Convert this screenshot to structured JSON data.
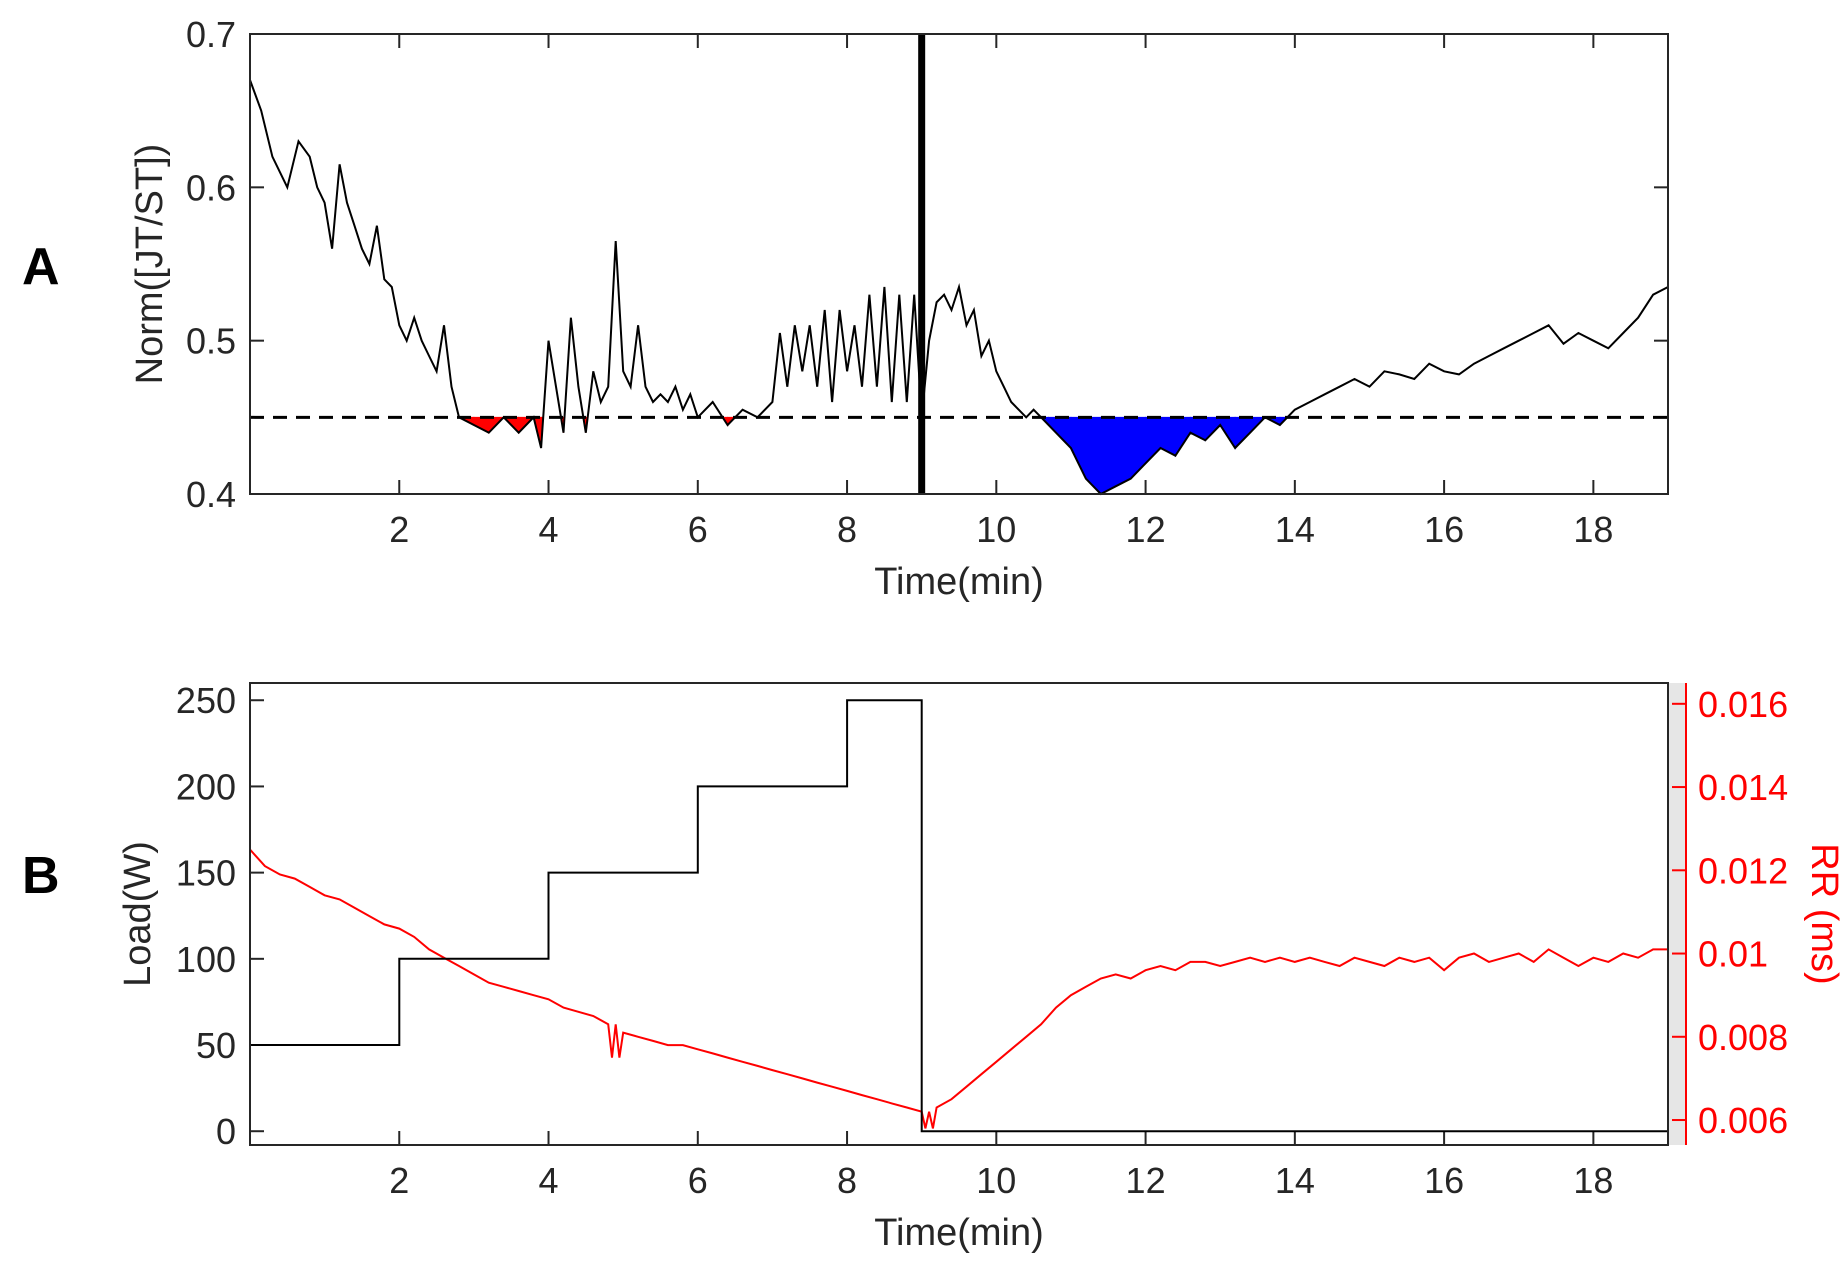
{
  "chart_data": [
    {
      "panel": "A",
      "type": "line",
      "xlabel": "Time(min)",
      "ylabel": "Norm([JT/ST])",
      "xlim": [
        0,
        19
      ],
      "ylim": [
        0.4,
        0.7
      ],
      "xticks": [
        "2",
        "4",
        "6",
        "8",
        "10",
        "12",
        "14",
        "16",
        "18"
      ],
      "yticks": [
        "0.4",
        "0.5",
        "0.6",
        "0.7"
      ],
      "threshold": 0.45,
      "marker_time": 9,
      "exercise_fill_color": "#ff0000",
      "recovery_fill_color": "#0000ff",
      "series": [
        {
          "name": "Norm([JT/ST])",
          "color": "#000000",
          "x": [
            0,
            0.15,
            0.3,
            0.5,
            0.65,
            0.8,
            0.9,
            1.0,
            1.1,
            1.2,
            1.3,
            1.4,
            1.5,
            1.6,
            1.7,
            1.8,
            1.9,
            2.0,
            2.1,
            2.2,
            2.3,
            2.4,
            2.5,
            2.6,
            2.7,
            2.8,
            3.0,
            3.2,
            3.4,
            3.6,
            3.8,
            3.9,
            4.0,
            4.1,
            4.2,
            4.3,
            4.4,
            4.5,
            4.6,
            4.7,
            4.8,
            4.9,
            5.0,
            5.1,
            5.2,
            5.3,
            5.4,
            5.5,
            5.6,
            5.7,
            5.8,
            5.9,
            6.0,
            6.2,
            6.4,
            6.6,
            6.8,
            7.0,
            7.1,
            7.2,
            7.3,
            7.4,
            7.5,
            7.6,
            7.7,
            7.8,
            7.9,
            8.0,
            8.1,
            8.2,
            8.3,
            8.4,
            8.5,
            8.6,
            8.7,
            8.8,
            8.9,
            9.0,
            9.1,
            9.2,
            9.3,
            9.4,
            9.5,
            9.6,
            9.7,
            9.8,
            9.9,
            10.0,
            10.1,
            10.2,
            10.3,
            10.4,
            10.5,
            10.6,
            10.7,
            10.8,
            11.0,
            11.2,
            11.4,
            11.6,
            11.8,
            12.0,
            12.2,
            12.4,
            12.6,
            12.8,
            13.0,
            13.2,
            13.4,
            13.6,
            13.8,
            14.0,
            14.2,
            14.4,
            14.6,
            14.8,
            15.0,
            15.2,
            15.4,
            15.6,
            15.8,
            16.0,
            16.2,
            16.4,
            16.6,
            16.8,
            17.0,
            17.2,
            17.4,
            17.6,
            17.8,
            18.0,
            18.2,
            18.4,
            18.6,
            18.8,
            19.0
          ],
          "y": [
            0.67,
            0.65,
            0.62,
            0.6,
            0.63,
            0.62,
            0.6,
            0.59,
            0.56,
            0.615,
            0.59,
            0.575,
            0.56,
            0.55,
            0.575,
            0.54,
            0.535,
            0.51,
            0.5,
            0.515,
            0.5,
            0.49,
            0.48,
            0.51,
            0.47,
            0.45,
            0.445,
            0.44,
            0.45,
            0.44,
            0.45,
            0.43,
            0.5,
            0.47,
            0.44,
            0.515,
            0.47,
            0.44,
            0.48,
            0.46,
            0.47,
            0.565,
            0.48,
            0.47,
            0.51,
            0.47,
            0.46,
            0.465,
            0.46,
            0.47,
            0.455,
            0.465,
            0.45,
            0.46,
            0.445,
            0.455,
            0.45,
            0.46,
            0.505,
            0.47,
            0.51,
            0.48,
            0.51,
            0.47,
            0.52,
            0.46,
            0.52,
            0.48,
            0.51,
            0.47,
            0.53,
            0.47,
            0.535,
            0.46,
            0.53,
            0.46,
            0.53,
            0.45,
            0.5,
            0.525,
            0.53,
            0.52,
            0.535,
            0.51,
            0.52,
            0.49,
            0.5,
            0.48,
            0.47,
            0.46,
            0.455,
            0.45,
            0.455,
            0.45,
            0.445,
            0.44,
            0.43,
            0.41,
            0.4,
            0.405,
            0.41,
            0.42,
            0.43,
            0.425,
            0.44,
            0.435,
            0.445,
            0.43,
            0.44,
            0.45,
            0.445,
            0.455,
            0.46,
            0.465,
            0.47,
            0.475,
            0.47,
            0.48,
            0.478,
            0.475,
            0.485,
            0.48,
            0.478,
            0.485,
            0.49,
            0.495,
            0.5,
            0.505,
            0.51,
            0.498,
            0.505,
            0.5,
            0.495,
            0.505,
            0.515,
            0.53,
            0.535
          ]
        }
      ]
    },
    {
      "panel": "B",
      "type": "line",
      "xlabel": "Time(min)",
      "ylabel": "Load(W)",
      "ylabel_right": "RR (ms)",
      "xlim": [
        0,
        19
      ],
      "ylim": [
        -8,
        260
      ],
      "ylim_right": [
        0.0054,
        0.0165
      ],
      "xticks": [
        "2",
        "4",
        "6",
        "8",
        "10",
        "12",
        "14",
        "16",
        "18"
      ],
      "yticks": [
        "0",
        "50",
        "100",
        "150",
        "200",
        "250"
      ],
      "yticks_right": [
        "0.006",
        "0.008",
        "0.01",
        "0.012",
        "0.014",
        "0.016"
      ],
      "series": [
        {
          "name": "Load(W)",
          "color": "#000000",
          "axis": "left",
          "x": [
            0,
            2,
            2,
            4,
            4,
            6,
            6,
            8,
            8,
            9,
            9,
            19
          ],
          "y": [
            50,
            50,
            100,
            100,
            150,
            150,
            200,
            200,
            250,
            250,
            0,
            0
          ]
        },
        {
          "name": "RR (ms)",
          "color": "#ff0000",
          "axis": "right",
          "x": [
            0,
            0.2,
            0.4,
            0.6,
            0.8,
            1.0,
            1.2,
            1.4,
            1.6,
            1.8,
            2.0,
            2.2,
            2.4,
            2.6,
            2.8,
            3.0,
            3.2,
            3.4,
            3.6,
            3.8,
            4.0,
            4.2,
            4.4,
            4.6,
            4.8,
            4.85,
            4.9,
            4.95,
            5.0,
            5.2,
            5.4,
            5.6,
            5.8,
            6.0,
            6.2,
            6.4,
            6.6,
            6.8,
            7.0,
            7.2,
            7.4,
            7.6,
            7.8,
            8.0,
            8.2,
            8.4,
            8.6,
            8.8,
            9.0,
            9.05,
            9.1,
            9.15,
            9.2,
            9.4,
            9.6,
            9.8,
            10.0,
            10.2,
            10.4,
            10.6,
            10.8,
            11.0,
            11.2,
            11.4,
            11.6,
            11.8,
            12.0,
            12.2,
            12.4,
            12.6,
            12.8,
            13.0,
            13.2,
            13.4,
            13.6,
            13.8,
            14.0,
            14.2,
            14.4,
            14.6,
            14.8,
            15.0,
            15.2,
            15.4,
            15.6,
            15.8,
            16.0,
            16.2,
            16.4,
            16.6,
            16.8,
            17.0,
            17.2,
            17.4,
            17.6,
            17.8,
            18.0,
            18.2,
            18.4,
            18.6,
            18.8,
            19.0
          ],
          "y": [
            0.0125,
            0.0121,
            0.0119,
            0.0118,
            0.0116,
            0.0114,
            0.0113,
            0.0111,
            0.0109,
            0.0107,
            0.0106,
            0.0104,
            0.0101,
            0.0099,
            0.0097,
            0.0095,
            0.0093,
            0.0092,
            0.0091,
            0.009,
            0.0089,
            0.0087,
            0.0086,
            0.0085,
            0.0083,
            0.0075,
            0.0083,
            0.0075,
            0.0081,
            0.008,
            0.0079,
            0.0078,
            0.0078,
            0.0077,
            0.0076,
            0.0075,
            0.0074,
            0.0073,
            0.0072,
            0.0071,
            0.007,
            0.0069,
            0.0068,
            0.0067,
            0.0066,
            0.0065,
            0.0064,
            0.0063,
            0.0062,
            0.0058,
            0.0062,
            0.0058,
            0.0063,
            0.0065,
            0.0068,
            0.0071,
            0.0074,
            0.0077,
            0.008,
            0.0083,
            0.0087,
            0.009,
            0.0092,
            0.0094,
            0.0095,
            0.0094,
            0.0096,
            0.0097,
            0.0096,
            0.0098,
            0.0098,
            0.0097,
            0.0098,
            0.0099,
            0.0098,
            0.0099,
            0.0098,
            0.0099,
            0.0098,
            0.0097,
            0.0099,
            0.0098,
            0.0097,
            0.0099,
            0.0098,
            0.0099,
            0.0096,
            0.0099,
            0.01,
            0.0098,
            0.0099,
            0.01,
            0.0098,
            0.0101,
            0.0099,
            0.0097,
            0.0099,
            0.0098,
            0.01,
            0.0099,
            0.0101,
            0.0101
          ]
        }
      ]
    }
  ],
  "panel_labels": [
    "A",
    "B"
  ]
}
